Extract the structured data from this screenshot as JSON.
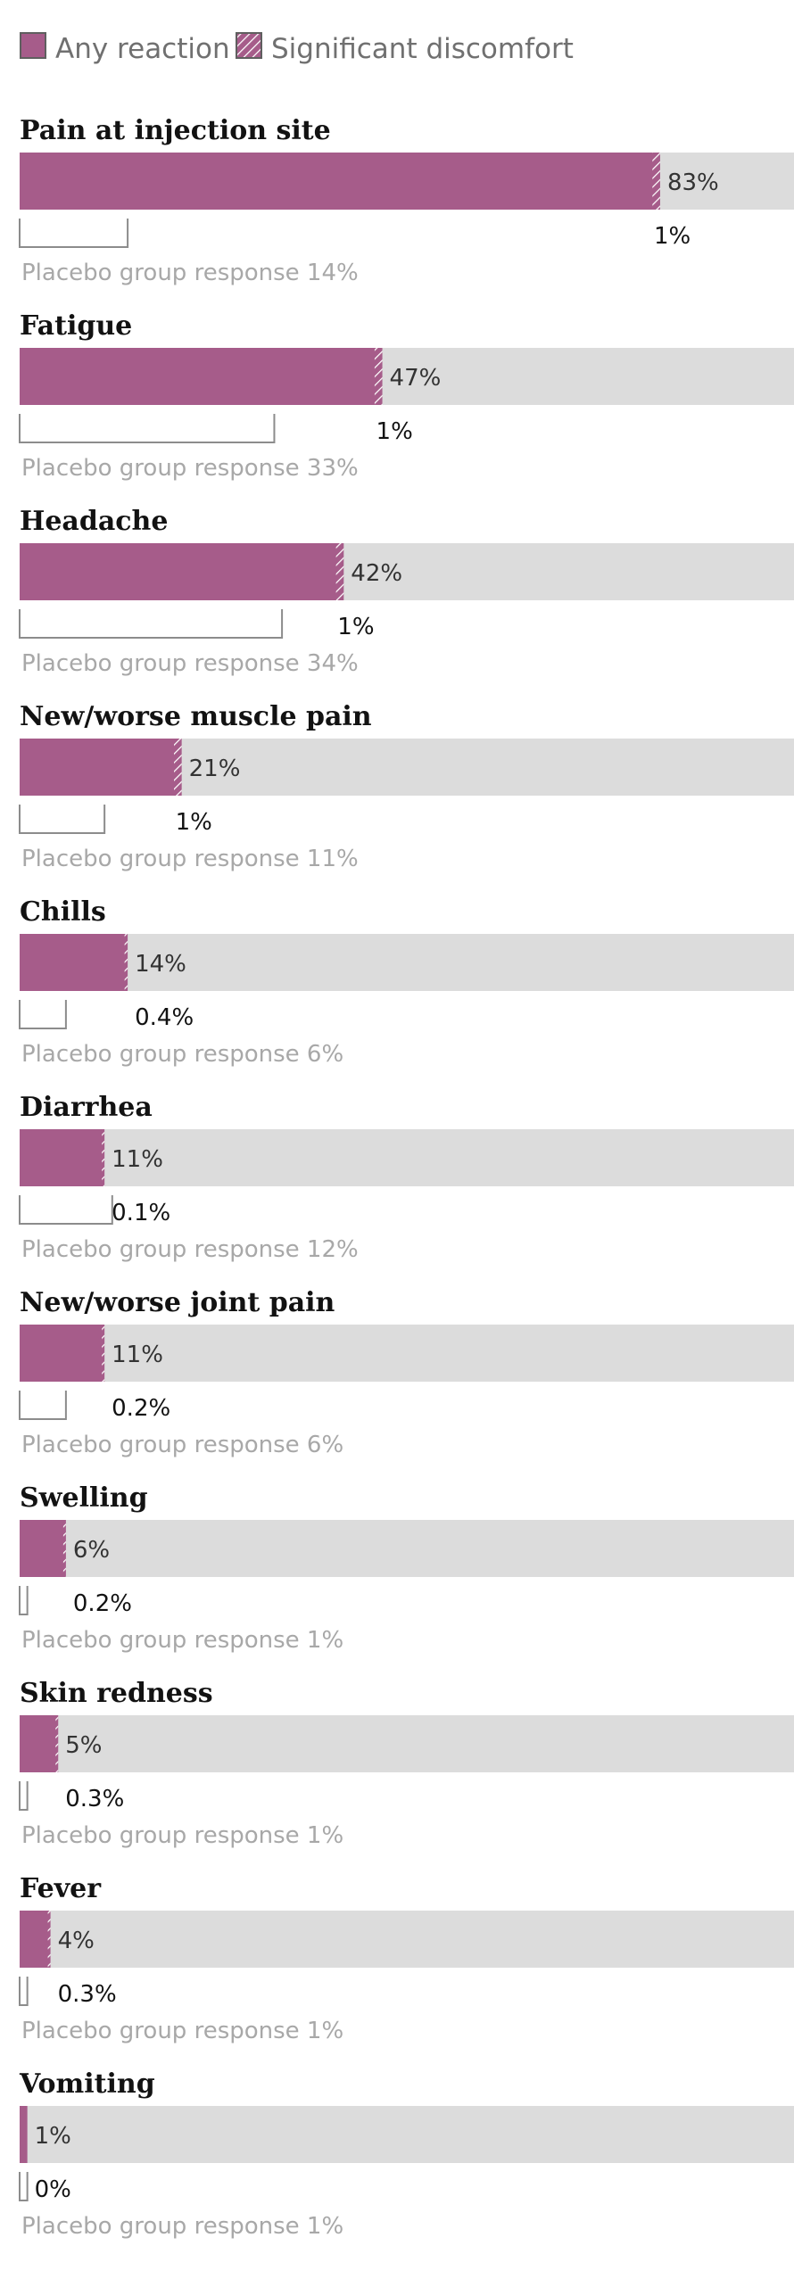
{
  "colors": {
    "reaction": "#a65c8a",
    "track": "#dcdcdc",
    "hatch": "#ffffff",
    "placebo_outline": "#8c8c8c"
  },
  "legend": {
    "any_reaction": "Any reaction",
    "significant_discomfort": "Significant discomfort"
  },
  "chart_data": {
    "type": "bar",
    "orientation": "horizontal",
    "xlim": [
      0,
      100
    ],
    "unit": "%",
    "placebo_prefix": "Placebo group response",
    "categories": [
      "Pain at injection site",
      "Fatigue",
      "Headache",
      "New/worse muscle pain",
      "Chills",
      "Diarrhea",
      "New/worse joint pain",
      "Swelling",
      "Skin redness",
      "Fever",
      "Vomiting"
    ],
    "series": [
      {
        "name": "Any reaction",
        "values": [
          83,
          47,
          42,
          21,
          14,
          11,
          11,
          6,
          5,
          4,
          1
        ]
      },
      {
        "name": "Significant discomfort",
        "values": [
          1,
          1,
          1,
          1,
          0.4,
          0.1,
          0.2,
          0.2,
          0.3,
          0.3,
          0
        ]
      },
      {
        "name": "Placebo group response",
        "values": [
          14,
          33,
          34,
          11,
          6,
          12,
          6,
          1,
          1,
          1,
          1
        ]
      }
    ]
  }
}
